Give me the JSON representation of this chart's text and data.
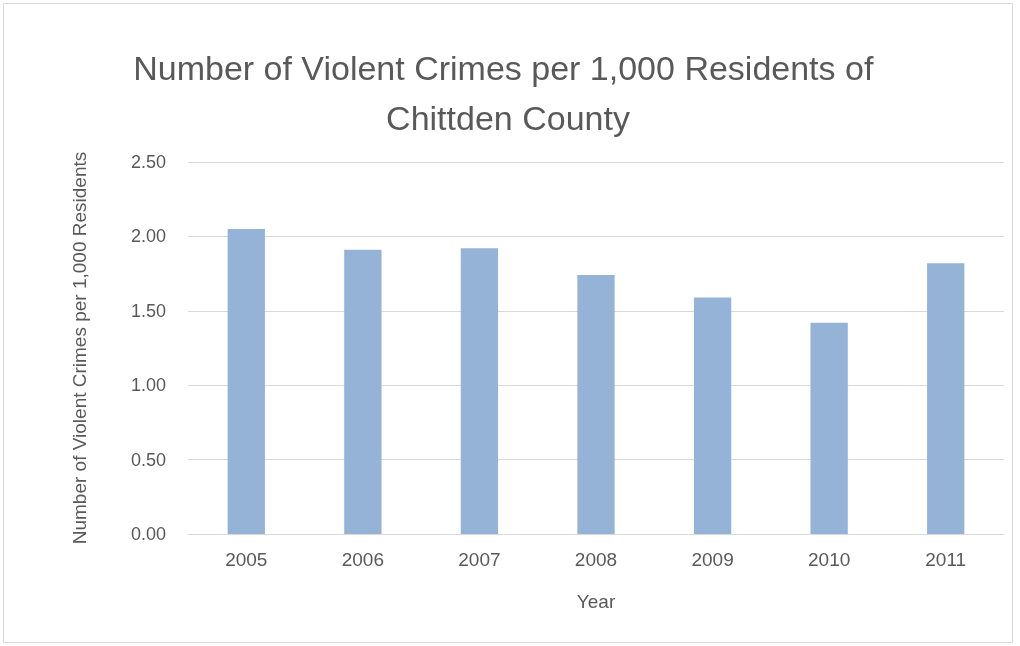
{
  "chart_data": {
    "type": "bar",
    "title": "Number of Violent Crimes per 1,000 Residents of Chittden County",
    "xlabel": "Year",
    "ylabel": "Number of Violent Crimes per 1,000 Residents",
    "categories": [
      "2005",
      "2006",
      "2007",
      "2008",
      "2009",
      "2010",
      "2011"
    ],
    "values": [
      2.05,
      1.91,
      1.92,
      1.74,
      1.59,
      1.42,
      1.82
    ],
    "color": "#95b3d7",
    "ylim": [
      0,
      2.5
    ],
    "yticks": [
      {
        "value": 0,
        "label": "0.00"
      },
      {
        "value": 0.5,
        "label": "0.50"
      },
      {
        "value": 1,
        "label": "1.00"
      },
      {
        "value": 1.5,
        "label": "1.50"
      },
      {
        "value": 2,
        "label": "2.00"
      },
      {
        "value": 2.5,
        "label": "2.50"
      }
    ],
    "grid": "y"
  }
}
